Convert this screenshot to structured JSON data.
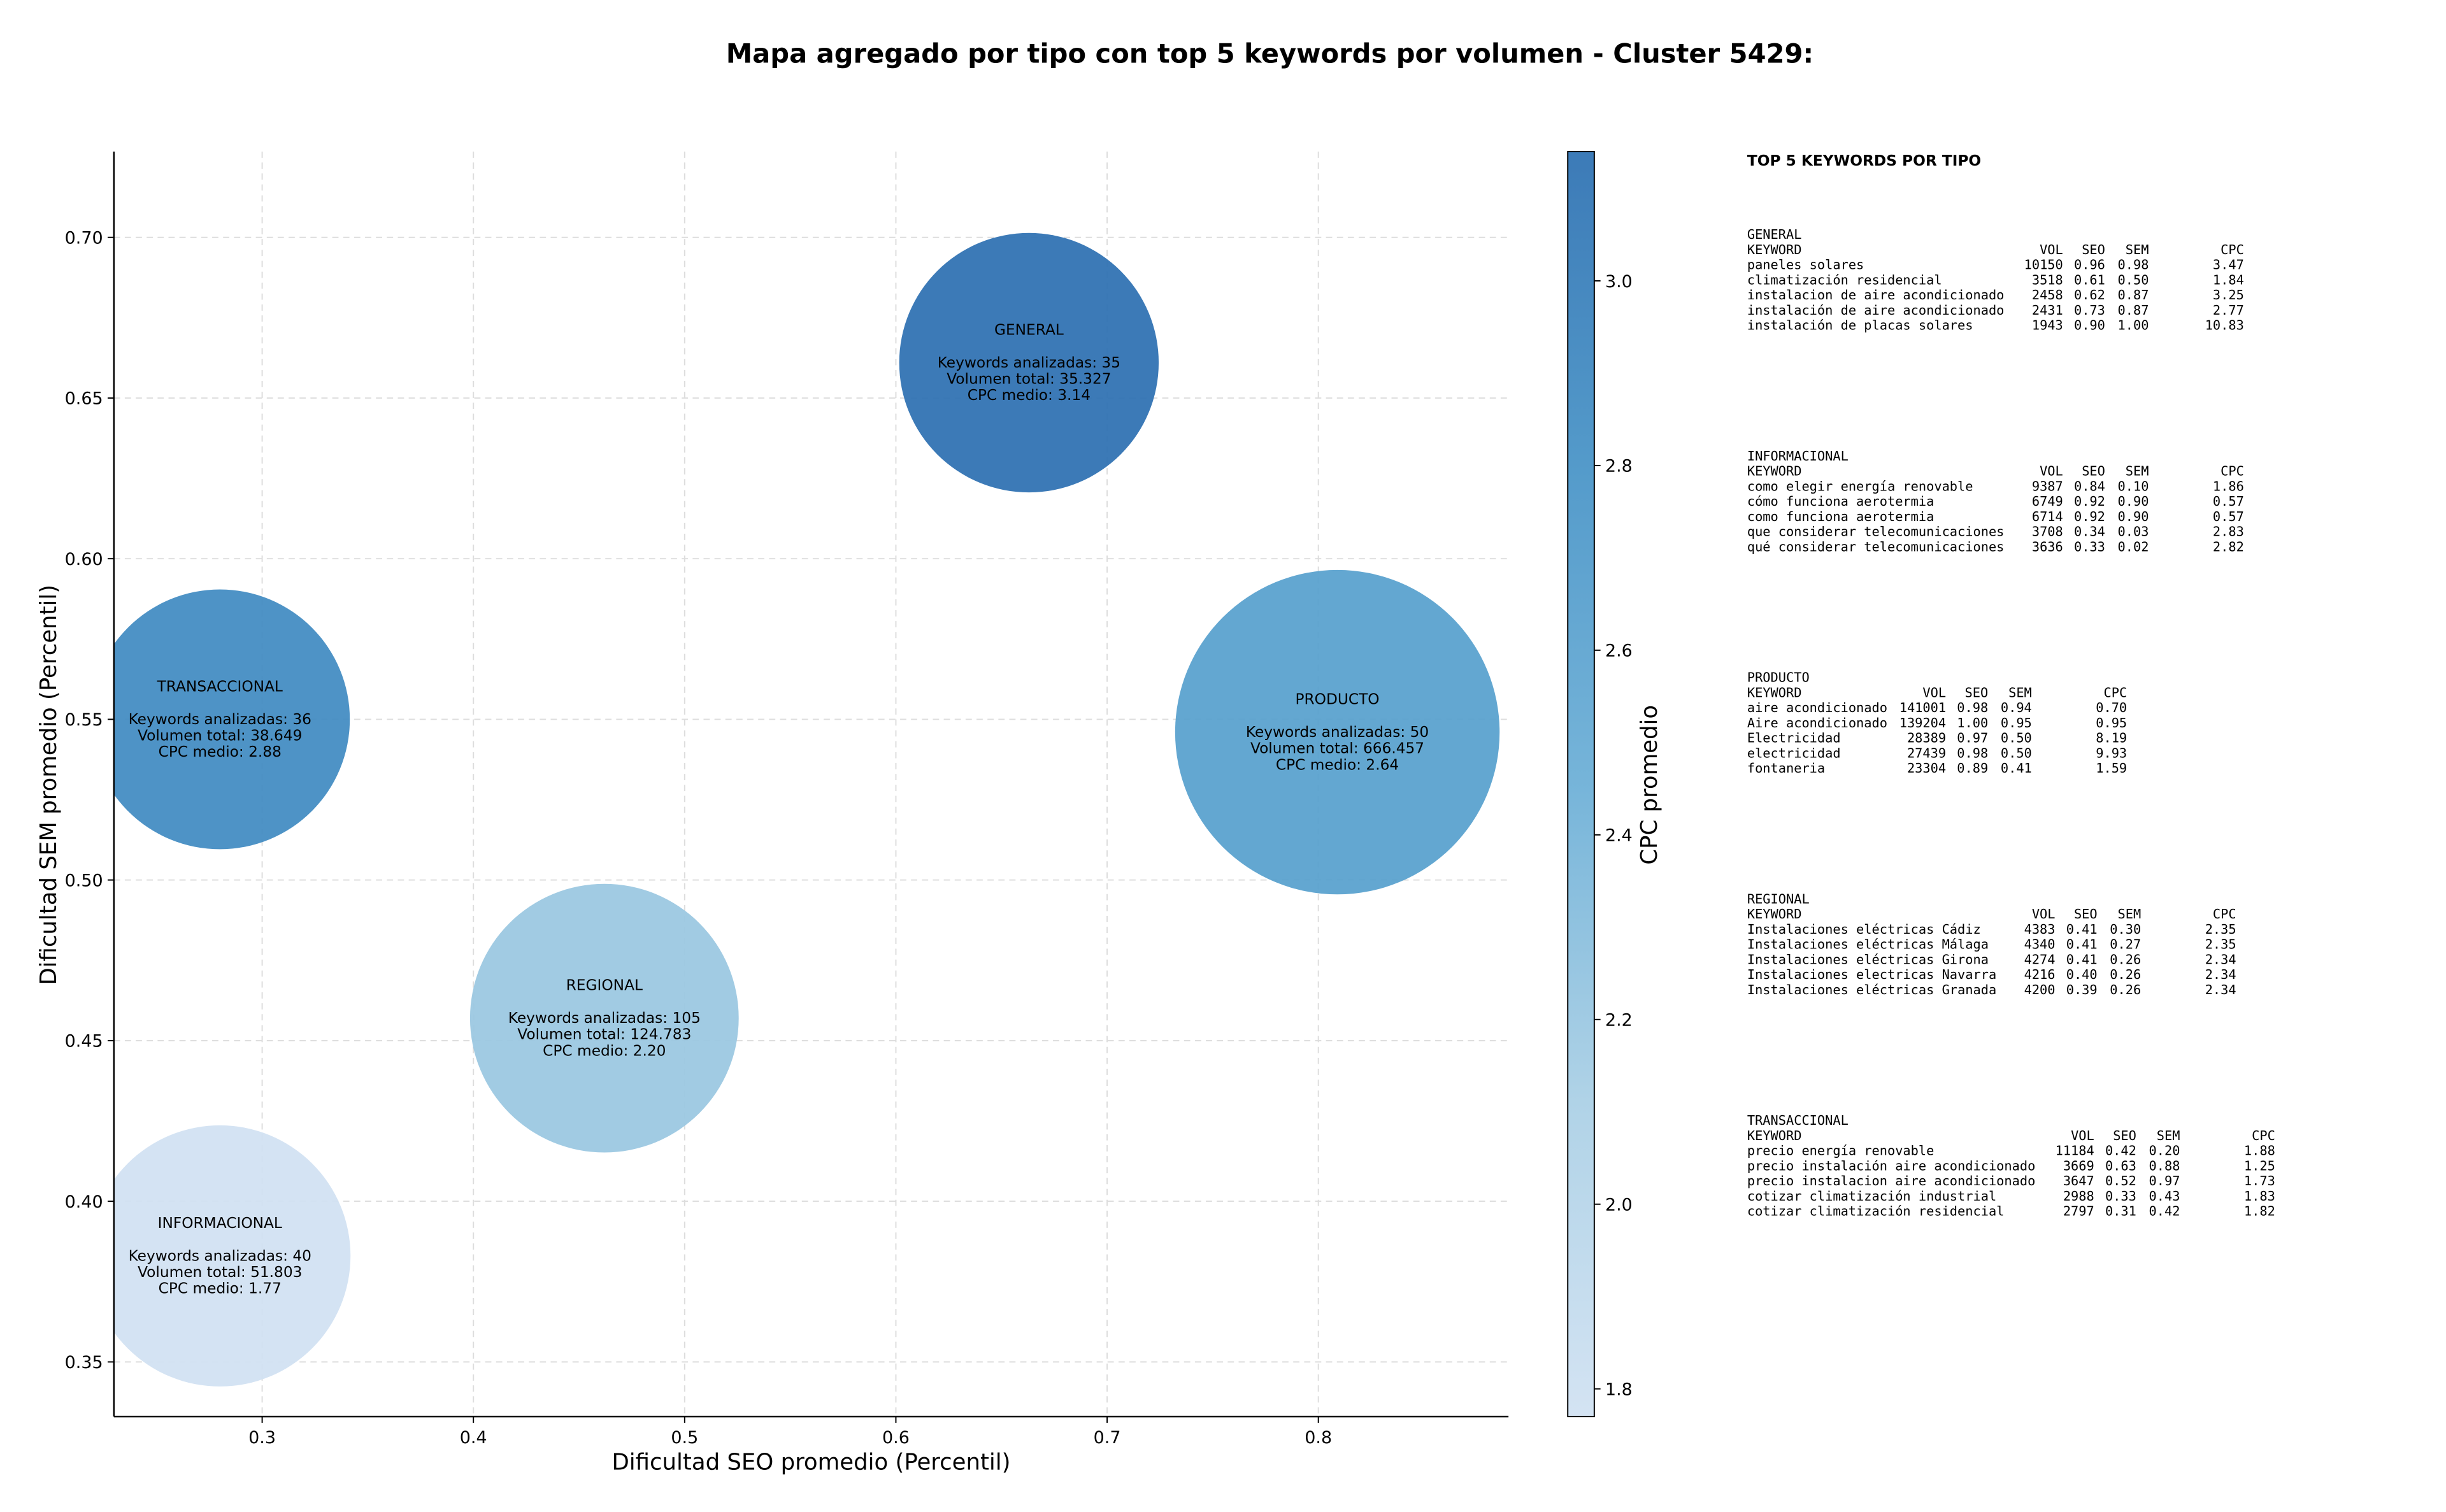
{
  "chart_data": {
    "type": "bubble",
    "title": "Mapa agregado por tipo con top 5 keywords por volumen - Cluster 5429:",
    "x_label": "Dificultad SEO promedio (Percentil)",
    "y_label": "Dificultad SEM promedio (Percentil)",
    "colorbar_label": "CPC promedio",
    "xlim": [
      0.2298,
      0.89
    ],
    "ylim": [
      0.333,
      0.7267
    ],
    "xticks": [
      0.3,
      0.4,
      0.5,
      0.6,
      0.7,
      0.8
    ],
    "yticks": [
      0.35,
      {
        "value": 0.4,
        "label": "0.40"
      },
      0.45,
      {
        "value": 0.5,
        "label": "0.50"
      },
      0.55,
      {
        "value": 0.6,
        "label": "0.60"
      },
      0.65,
      {
        "value": 0.7,
        "label": "0.70"
      }
    ],
    "clim": [
      1.77,
      3.14
    ],
    "cticks": [
      1.8,
      {
        "value": 2,
        "label": "2.0"
      },
      2.2,
      2.4,
      2.6,
      2.8,
      {
        "value": 3,
        "label": "3.0"
      }
    ],
    "colormap": [
      "#d0e1f2",
      "#a9cfe5",
      "#6aaed6",
      "#4592c6",
      "#2b6fb1"
    ],
    "grid": true,
    "points": [
      {
        "name": "GENERAL",
        "x": 0.663,
        "y": 0.661,
        "keywords": 35,
        "volume": 35327,
        "cpc": 3.14,
        "labels": [
          "Keywords analizadas: 35",
          "Volumen total: 35.327",
          "CPC medio: 3.14"
        ]
      },
      {
        "name": "TRANSACCIONAL",
        "x": 0.28,
        "y": 0.55,
        "keywords": 36,
        "volume": 38649,
        "cpc": 2.88,
        "labels": [
          "Keywords analizadas: 36",
          "Volumen total: 38.649",
          "CPC medio: 2.88"
        ]
      },
      {
        "name": "PRODUCTO",
        "x": 0.809,
        "y": 0.546,
        "keywords": 50,
        "volume": 666457,
        "cpc": 2.64,
        "labels": [
          "Keywords analizadas: 50",
          "Volumen total: 666.457",
          "CPC medio: 2.64"
        ]
      },
      {
        "name": "REGIONAL",
        "x": 0.462,
        "y": 0.457,
        "keywords": 105,
        "volume": 124783,
        "cpc": 2.2,
        "labels": [
          "Keywords analizadas: 105",
          "Volumen total: 124.783",
          "CPC medio: 2.20"
        ]
      },
      {
        "name": "INFORMACIONAL",
        "x": 0.28,
        "y": 0.383,
        "keywords": 40,
        "volume": 51803,
        "cpc": 1.77,
        "labels": [
          "Keywords analizadas: 40",
          "Volumen total: 51.803",
          "CPC medio: 1.77"
        ]
      }
    ],
    "side_panel": {
      "title": "TOP 5 KEYWORDS POR TIPO",
      "columns": [
        "KEYWORD",
        "VOL",
        "SEO",
        "SEM",
        "CPC"
      ],
      "sections": [
        {
          "name": "GENERAL",
          "rows": [
            [
              "paneles solares",
              "10150",
              "0.96",
              "0.98",
              "3.47"
            ],
            [
              "climatización residencial",
              "3518",
              "0.61",
              "0.50",
              "1.84"
            ],
            [
              "instalacion de aire acondicionado",
              "2458",
              "0.62",
              "0.87",
              "3.25"
            ],
            [
              "instalación de aire acondicionado",
              "2431",
              "0.73",
              "0.87",
              "2.77"
            ],
            [
              "instalación de placas solares",
              "1943",
              "0.90",
              "1.00",
              "10.83"
            ]
          ]
        },
        {
          "name": "INFORMACIONAL",
          "rows": [
            [
              "como elegir energía renovable",
              "9387",
              "0.84",
              "0.10",
              "1.86"
            ],
            [
              "cómo funciona aerotermia",
              "6749",
              "0.92",
              "0.90",
              "0.57"
            ],
            [
              "como funciona aerotermia",
              "6714",
              "0.92",
              "0.90",
              "0.57"
            ],
            [
              "que considerar telecomunicaciones",
              "3708",
              "0.34",
              "0.03",
              "2.83"
            ],
            [
              "qué considerar telecomunicaciones",
              "3636",
              "0.33",
              "0.02",
              "2.82"
            ]
          ]
        },
        {
          "name": "PRODUCTO",
          "rows": [
            [
              "aire acondicionado",
              "141001",
              "0.98",
              "0.94",
              "0.70"
            ],
            [
              "Aire acondicionado",
              "139204",
              "1.00",
              "0.95",
              "0.95"
            ],
            [
              "Electricidad",
              "28389",
              "0.97",
              "0.50",
              "8.19"
            ],
            [
              "electricidad",
              "27439",
              "0.98",
              "0.50",
              "9.93"
            ],
            [
              "fontaneria",
              "23304",
              "0.89",
              "0.41",
              "1.59"
            ]
          ]
        },
        {
          "name": "REGIONAL",
          "rows": [
            [
              "Instalaciones eléctricas Cádiz",
              "4383",
              "0.41",
              "0.30",
              "2.35"
            ],
            [
              "Instalaciones eléctricas Málaga",
              "4340",
              "0.41",
              "0.27",
              "2.35"
            ],
            [
              "Instalaciones eléctricas Girona",
              "4274",
              "0.41",
              "0.26",
              "2.34"
            ],
            [
              "Instalaciones electricas Navarra",
              "4216",
              "0.40",
              "0.26",
              "2.34"
            ],
            [
              "Instalaciones eléctricas Granada",
              "4200",
              "0.39",
              "0.26",
              "2.34"
            ]
          ]
        },
        {
          "name": "TRANSACCIONAL",
          "rows": [
            [
              "precio energía renovable",
              "11184",
              "0.42",
              "0.20",
              "1.88"
            ],
            [
              "precio instalación aire acondicionado",
              "3669",
              "0.63",
              "0.88",
              "1.25"
            ],
            [
              "precio instalacion aire acondicionado",
              "3647",
              "0.52",
              "0.97",
              "1.73"
            ],
            [
              "cotizar climatización industrial",
              "2988",
              "0.33",
              "0.43",
              "1.83"
            ],
            [
              "cotizar climatización residencial",
              "2797",
              "0.31",
              "0.42",
              "1.82"
            ]
          ]
        }
      ]
    }
  }
}
